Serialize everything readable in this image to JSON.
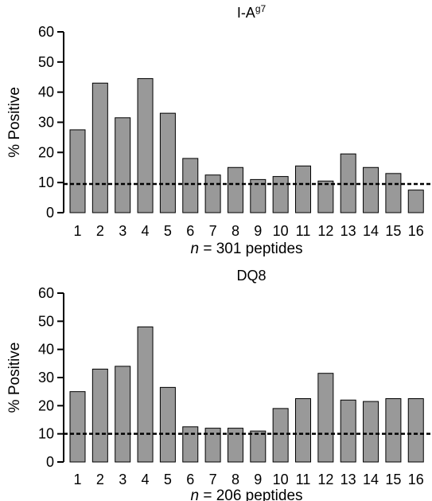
{
  "chart_data": [
    {
      "type": "bar",
      "title": "I-A",
      "title_superscript": "g7",
      "xlabel_italic": "n",
      "xlabel_rest": " = 301 peptides",
      "ylabel": "% Positive",
      "ylim": [
        0,
        60
      ],
      "yticks": [
        "0",
        "10",
        "20",
        "30",
        "40",
        "50",
        "60"
      ],
      "categories": [
        "1",
        "2",
        "3",
        "4",
        "5",
        "6",
        "7",
        "8",
        "9",
        "10",
        "11",
        "12",
        "13",
        "14",
        "15",
        "16"
      ],
      "values": [
        27.5,
        43,
        31.5,
        44.5,
        33,
        18,
        12.5,
        15,
        11,
        12,
        15.5,
        10.5,
        19.5,
        15,
        13,
        7.5
      ],
      "reference_line": 9.5,
      "bar_color": "#999999"
    },
    {
      "type": "bar",
      "title": "DQ8",
      "title_superscript": "",
      "xlabel_italic": "n",
      "xlabel_rest": " = 206 peptides",
      "ylabel": "% Positive",
      "ylim": [
        0,
        60
      ],
      "yticks": [
        "0",
        "10",
        "20",
        "30",
        "40",
        "50",
        "60"
      ],
      "categories": [
        "1",
        "2",
        "3",
        "4",
        "5",
        "6",
        "7",
        "8",
        "9",
        "10",
        "11",
        "12",
        "13",
        "14",
        "15",
        "16"
      ],
      "values": [
        25,
        33,
        34,
        48,
        26.5,
        12.5,
        12,
        12,
        11,
        19,
        22.5,
        31.5,
        22,
        21.5,
        22.5,
        22.5
      ],
      "reference_line": 10,
      "bar_color": "#999999"
    }
  ]
}
